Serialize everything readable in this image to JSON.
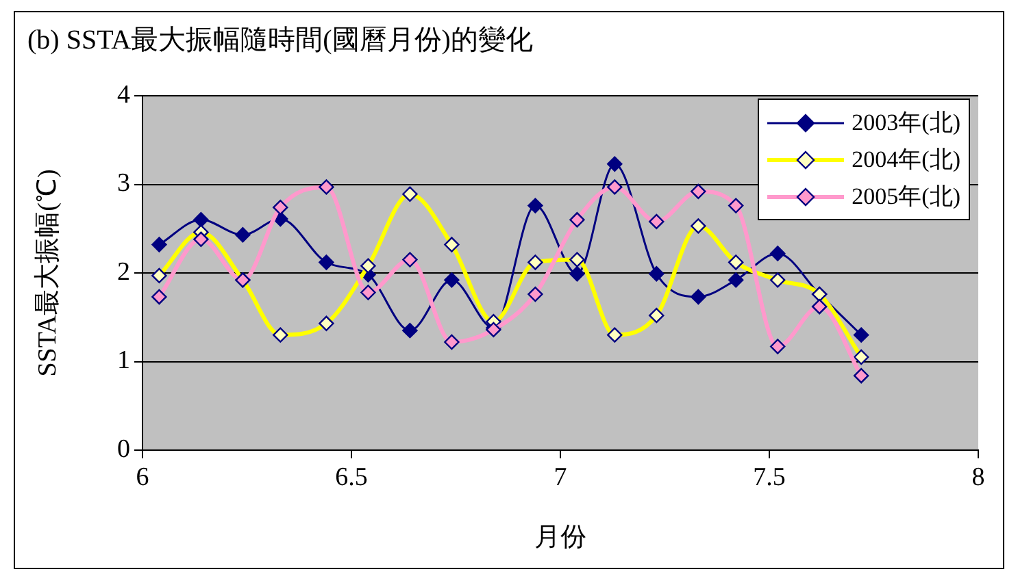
{
  "chart_data": {
    "type": "line",
    "title": "(b) SSTA最大振幅隨時間(國曆月份)的變化",
    "xlabel": "月份",
    "ylabel": "SSTA最大振幅(℃)",
    "x": [
      6.04,
      6.14,
      6.24,
      6.33,
      6.44,
      6.54,
      6.64,
      6.74,
      6.84,
      6.94,
      7.04,
      7.13,
      7.23,
      7.33,
      7.42,
      7.52,
      7.62,
      7.72
    ],
    "series": [
      {
        "name": "2003年(北)",
        "color": "#000080",
        "values": [
          2.32,
          2.6,
          2.43,
          2.61,
          2.12,
          1.98,
          1.35,
          1.92,
          1.38,
          2.76,
          1.99,
          3.23,
          1.99,
          1.73,
          1.92,
          2.22,
          1.76,
          1.3
        ]
      },
      {
        "name": "2004年(北)",
        "color": "#ffff00",
        "values": [
          1.97,
          2.46,
          1.92,
          1.3,
          1.43,
          2.08,
          2.89,
          2.32,
          1.45,
          2.12,
          2.15,
          1.3,
          1.52,
          2.53,
          2.12,
          1.92,
          1.76,
          1.05
        ]
      },
      {
        "name": "2005年(北)",
        "color": "#ff99cc",
        "values": [
          1.73,
          2.38,
          1.92,
          2.74,
          2.97,
          1.78,
          2.15,
          1.22,
          1.36,
          1.76,
          2.6,
          2.97,
          2.58,
          2.92,
          2.76,
          1.17,
          1.62,
          0.84
        ]
      }
    ],
    "xlim": [
      6,
      8
    ],
    "xticks": [
      6,
      6.5,
      7,
      7.5,
      8
    ],
    "ylim": [
      0,
      4
    ],
    "yticks": [
      0,
      1,
      2,
      3,
      4
    ],
    "grid": "y",
    "legend": "top right",
    "marker": "diamond",
    "line_style": "solid"
  }
}
